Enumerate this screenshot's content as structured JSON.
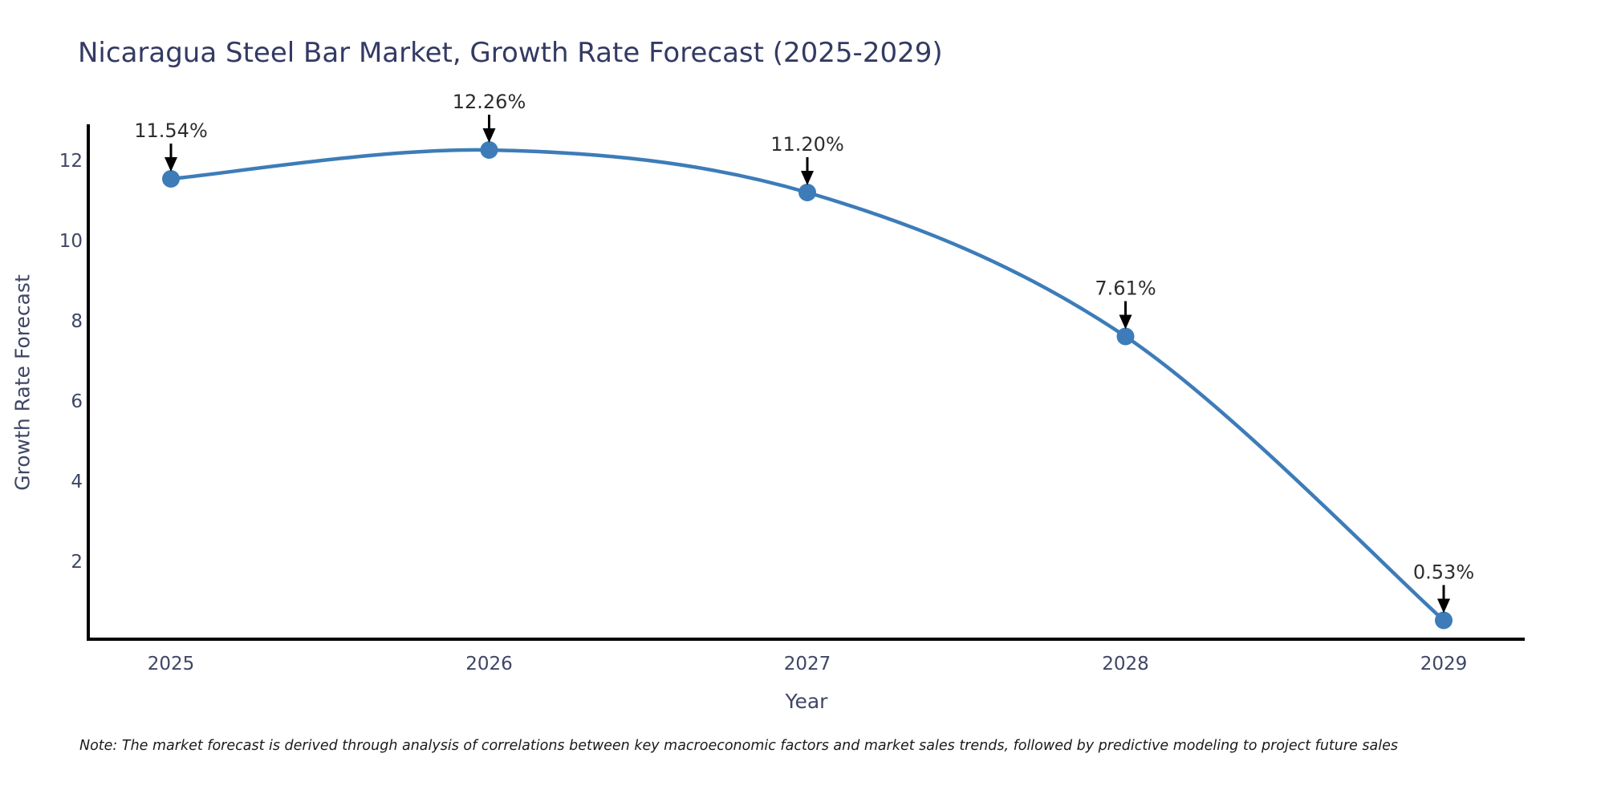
{
  "chart_data": {
    "type": "line",
    "title": "Nicaragua Steel Bar Market, Growth Rate Forecast (2025-2029)",
    "xlabel": "Year",
    "ylabel": "Growth Rate Forecast",
    "categories": [
      "2025",
      "2026",
      "2027",
      "2028",
      "2029"
    ],
    "series": [
      {
        "name": "Growth Rate Forecast",
        "values": [
          11.54,
          12.26,
          11.2,
          7.61,
          0.53
        ]
      }
    ],
    "point_labels": [
      "11.54%",
      "12.26%",
      "11.20%",
      "7.61%",
      "0.53%"
    ],
    "yticks": [
      2,
      4,
      6,
      8,
      10,
      12
    ],
    "ylim": [
      0,
      12.9
    ],
    "grid": false,
    "legend_position": "none",
    "line_smooth": true,
    "colors": {
      "line": "#3d7cb8",
      "marker": "#3d7cb8",
      "axis_spine": "#000000",
      "arrow": "#000000",
      "annotation_text": "#2d2d2d",
      "tick_text": "#3e4666",
      "title_text": "#333a63",
      "note_text": "#1a1a1a",
      "background": "#ffffff"
    },
    "note": "Note: The market forecast is derived through analysis of correlations between key macroeconomic factors and market sales trends, followed by predictive modeling to project future sales"
  }
}
